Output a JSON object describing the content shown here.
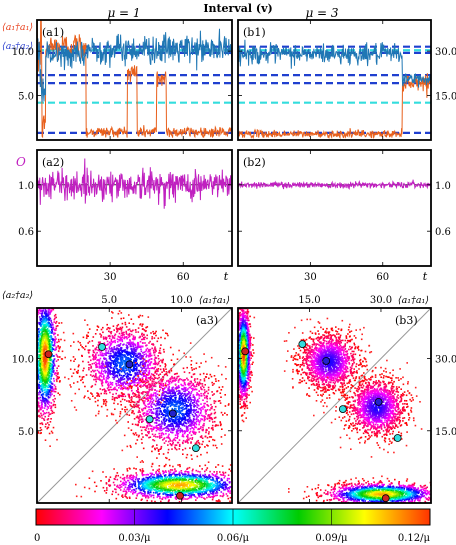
{
  "figure": {
    "title": "Interval (v)",
    "colorbar": {
      "tick_labels": [
        "0",
        "0.03/μ",
        "0.06/μ",
        "0.09/μ",
        "0.12/μ"
      ],
      "range": [
        0,
        0.12
      ],
      "colormap": [
        "#ffffff",
        "#ff0000",
        "#ff00ff",
        "#0000ff",
        "#00ffff",
        "#00cc00",
        "#ffff00",
        "#ff3300"
      ]
    }
  },
  "chart_data": [
    {
      "id": "a1",
      "type": "line",
      "column_title": "μ = 1",
      "panel_label": "(a1)",
      "ylabel_series": [
        "⟨a₁†a₁⟩",
        "⟨a₂†a₂⟩"
      ],
      "xlim": [
        0,
        80
      ],
      "ylim": [
        0,
        13.5
      ],
      "yticks": [
        5.0,
        10.0
      ],
      "ytick_labels": [
        "5.0",
        "10.0"
      ],
      "xticks": [
        30,
        60
      ],
      "series": [
        {
          "name": "⟨a₁†a₁⟩",
          "color": "#e8601c",
          "segments": [
            [
              0,
              10.5,
              4.5
            ],
            [
              2,
              10.5,
              4.5
            ],
            [
              2,
              1.5,
              1.5
            ],
            [
              3.5,
              1.5,
              1.5
            ],
            [
              3.5,
              10.5,
              1.5
            ],
            [
              20,
              10.5,
              1.5
            ],
            [
              20,
              0.9,
              0.6
            ],
            [
              37,
              0.9,
              0.6
            ],
            [
              37,
              7.5,
              1.5
            ],
            [
              41,
              7.5,
              1.5
            ],
            [
              41,
              0.9,
              0.6
            ],
            [
              49,
              0.9,
              0.6
            ],
            [
              49,
              7.0,
              1.2
            ],
            [
              53,
              7.0,
              1.2
            ],
            [
              53,
              0.9,
              0.6
            ],
            [
              80,
              0.9,
              0.6
            ]
          ]
        },
        {
          "name": "⟨a₂†a₂⟩",
          "color": "#1f77b4",
          "segments": [
            [
              0,
              9.0,
              3.0
            ],
            [
              2,
              9.0,
              3.0
            ],
            [
              2,
              5.5,
              1.5
            ],
            [
              3.5,
              5.5,
              1.5
            ],
            [
              3.5,
              9.5,
              1.2
            ],
            [
              20,
              9.5,
              1.2
            ],
            [
              20,
              10.2,
              1.5
            ],
            [
              80,
              10.2,
              1.5
            ]
          ]
        }
      ],
      "reference_lines": [
        {
          "y": 10.5,
          "color": "#1f3fcf"
        },
        {
          "y": 9.8,
          "color": "#1f3fcf"
        },
        {
          "y": 7.3,
          "color": "#1f3fcf"
        },
        {
          "y": 6.4,
          "color": "#1f3fcf"
        },
        {
          "y": 0.8,
          "color": "#1f3fcf"
        },
        {
          "y": 4.2,
          "color": "#33dddd"
        },
        {
          "y": 10.1,
          "color": "#33dddd"
        }
      ]
    },
    {
      "id": "b1",
      "type": "line",
      "column_title": "μ = 3",
      "panel_label": "(b1)",
      "xlim": [
        0,
        80
      ],
      "ylim": [
        0,
        40.5
      ],
      "yticks": [
        15.0,
        30.0
      ],
      "ytick_labels": [
        "15.0",
        "30.0"
      ],
      "xticks": [
        30,
        60
      ],
      "series": [
        {
          "name": "⟨a₁†a₁⟩",
          "color": "#e8601c",
          "segments": [
            [
              0,
              2.0,
              1.2
            ],
            [
              68,
              2.0,
              1.2
            ],
            [
              68,
              19.5,
              2.5
            ],
            [
              80,
              19.5,
              2.5
            ]
          ]
        },
        {
          "name": "⟨a₂†a₂⟩",
          "color": "#1f77b4",
          "segments": [
            [
              0,
              29.0,
              3.0
            ],
            [
              68,
              29.0,
              3.0
            ],
            [
              68,
              20.5,
              2.0
            ],
            [
              80,
              20.5,
              2.0
            ]
          ]
        }
      ],
      "reference_lines": [
        {
          "y": 31.5,
          "color": "#1f3fcf"
        },
        {
          "y": 29.4,
          "color": "#1f3fcf"
        },
        {
          "y": 21.9,
          "color": "#1f3fcf"
        },
        {
          "y": 19.2,
          "color": "#1f3fcf"
        },
        {
          "y": 2.4,
          "color": "#1f3fcf"
        },
        {
          "y": 12.6,
          "color": "#33dddd"
        },
        {
          "y": 30.3,
          "color": "#33dddd"
        }
      ]
    },
    {
      "id": "a2",
      "type": "line",
      "panel_label": "(a2)",
      "ylabel": "O",
      "xlim": [
        0,
        80
      ],
      "ylim": [
        0.3,
        1.3
      ],
      "yticks": [
        0.6,
        1.0
      ],
      "ytick_labels": [
        "0.6",
        "1.0"
      ],
      "xticks": [
        30,
        60
      ],
      "xtick_labels": [
        "30",
        "60"
      ],
      "xlabel": "t",
      "series": [
        {
          "name": "O",
          "color": "#c020c0",
          "segments": [
            [
              0,
              1.0,
              0.12
            ],
            [
              80,
              1.0,
              0.12
            ]
          ]
        }
      ],
      "reference_lines": [
        {
          "y": 1.0,
          "color": "#333333"
        }
      ]
    },
    {
      "id": "b2",
      "type": "line",
      "panel_label": "(b2)",
      "xlim": [
        0,
        80
      ],
      "ylim": [
        0.3,
        1.3
      ],
      "yticks": [
        0.6,
        1.0
      ],
      "ytick_labels": [
        "0.6",
        "1.0"
      ],
      "xticks": [
        30,
        60
      ],
      "xtick_labels": [
        "30",
        "60"
      ],
      "xlabel": "t",
      "series": [
        {
          "name": "O",
          "color": "#c020c0",
          "segments": [
            [
              0,
              1.0,
              0.025
            ],
            [
              80,
              1.0,
              0.025
            ]
          ]
        }
      ],
      "reference_lines": [
        {
          "y": 1.0,
          "color": "#333333"
        }
      ]
    },
    {
      "id": "a3",
      "type": "heatmap",
      "panel_label": "(a3)",
      "xlabel": "⟨a₁†a₁⟩",
      "ylabel": "⟨a₂†a₂⟩",
      "xlim": [
        0,
        13.5
      ],
      "ylim": [
        0,
        13.5
      ],
      "xticks": [
        5.0,
        10.0
      ],
      "xtick_labels": [
        "5.0",
        "10.0"
      ],
      "yticks": [
        5.0,
        10.0
      ],
      "ytick_labels": [
        "5.0",
        "10.0"
      ],
      "blobs": [
        {
          "x": 0.5,
          "y": 10.2,
          "sx": 0.4,
          "sy": 2.0,
          "peak": 0.12
        },
        {
          "x": 6.0,
          "y": 9.7,
          "sx": 1.4,
          "sy": 1.3,
          "peak": 0.05
        },
        {
          "x": 9.5,
          "y": 6.5,
          "sx": 1.5,
          "sy": 1.4,
          "peak": 0.05
        },
        {
          "x": 9.8,
          "y": 1.3,
          "sx": 2.2,
          "sy": 0.5,
          "peak": 0.11
        }
      ],
      "fixed_points": [
        {
          "x": 0.8,
          "y": 10.3,
          "type": "stable",
          "color": "#cc2222"
        },
        {
          "x": 6.4,
          "y": 9.6,
          "type": "stable",
          "color": "#2222cc"
        },
        {
          "x": 9.4,
          "y": 6.2,
          "type": "stable",
          "color": "#2222cc"
        },
        {
          "x": 9.9,
          "y": 0.5,
          "type": "stable",
          "color": "#cc2222"
        },
        {
          "x": 4.5,
          "y": 10.8,
          "type": "saddle",
          "color": "#33dddd"
        },
        {
          "x": 7.8,
          "y": 5.8,
          "type": "saddle",
          "color": "#33dddd"
        },
        {
          "x": 11.0,
          "y": 3.8,
          "type": "saddle",
          "color": "#33dddd"
        }
      ]
    },
    {
      "id": "b3",
      "type": "heatmap",
      "panel_label": "(b3)",
      "xlabel": "⟨a₁†a₁⟩",
      "xlim": [
        0,
        40.5
      ],
      "ylim": [
        0,
        40.5
      ],
      "xticks": [
        15.0,
        30.0
      ],
      "xtick_labels": [
        "15.0",
        "30.0"
      ],
      "yticks": [
        15.0,
        30.0
      ],
      "ytick_labels": [
        "15.0",
        "30.0"
      ],
      "blobs": [
        {
          "x": 1.0,
          "y": 31.0,
          "sx": 0.7,
          "sy": 4.5,
          "peak": 0.12
        },
        {
          "x": 19.0,
          "y": 29.5,
          "sx": 3.0,
          "sy": 3.0,
          "peak": 0.04
        },
        {
          "x": 29.0,
          "y": 20.0,
          "sx": 3.0,
          "sy": 3.0,
          "peak": 0.04
        },
        {
          "x": 30.0,
          "y": 2.0,
          "sx": 5.5,
          "sy": 1.1,
          "peak": 0.11
        }
      ],
      "fixed_points": [
        {
          "x": 1.5,
          "y": 31.5,
          "type": "stable",
          "color": "#cc2222"
        },
        {
          "x": 18.5,
          "y": 29.5,
          "type": "stable",
          "color": "#2222cc"
        },
        {
          "x": 29.5,
          "y": 21.0,
          "type": "stable",
          "color": "#2222cc"
        },
        {
          "x": 31.0,
          "y": 1.0,
          "type": "stable",
          "color": "#cc2222"
        },
        {
          "x": 13.5,
          "y": 33.0,
          "type": "saddle",
          "color": "#33dddd"
        },
        {
          "x": 22.0,
          "y": 19.5,
          "type": "saddle",
          "color": "#33dddd"
        },
        {
          "x": 33.5,
          "y": 13.5,
          "type": "saddle",
          "color": "#33dddd"
        }
      ]
    }
  ]
}
